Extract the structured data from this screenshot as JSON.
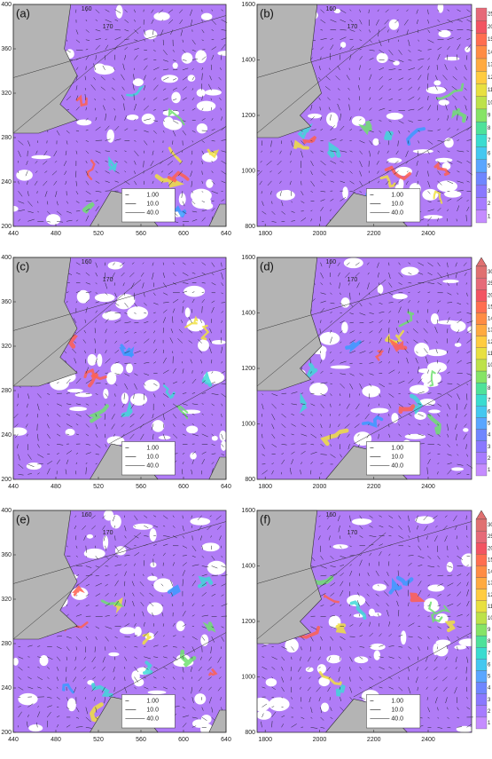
{
  "panels": [
    {
      "label": "(a)",
      "xlim": [
        440,
        640
      ],
      "xticks": [
        440,
        480,
        520,
        560,
        600,
        640
      ],
      "ylim": [
        200,
        400
      ],
      "yticks": [
        200,
        240,
        280,
        320,
        360,
        400
      ],
      "contours": [
        "160",
        "170"
      ],
      "legend": [
        "1.00",
        "10.0",
        "40.0"
      ]
    },
    {
      "label": "(b)",
      "xlim": [
        1770,
        2560
      ],
      "xticks": [
        1800,
        2000,
        2200,
        2400
      ],
      "ylim": [
        800,
        1600
      ],
      "yticks": [
        800,
        1000,
        1200,
        1400,
        1600
      ],
      "contours": [
        "160",
        "170"
      ],
      "legend": [
        "1.00",
        "10.0",
        "40.0"
      ]
    },
    {
      "label": "(c)",
      "xlim": [
        440,
        640
      ],
      "xticks": [
        440,
        480,
        520,
        560,
        600,
        640
      ],
      "ylim": [
        200,
        400
      ],
      "yticks": [
        200,
        240,
        280,
        320,
        360,
        400
      ],
      "contours": [
        "160",
        "170"
      ],
      "legend": [
        "1.00",
        "10.0",
        "40.0"
      ]
    },
    {
      "label": "(d)",
      "xlim": [
        1770,
        2560
      ],
      "xticks": [
        1800,
        2000,
        2200,
        2400
      ],
      "ylim": [
        800,
        1600
      ],
      "yticks": [
        800,
        1000,
        1200,
        1400,
        1600
      ],
      "contours": [
        "160",
        "170"
      ],
      "legend": [
        "1.00",
        "10.0",
        "40.0"
      ]
    },
    {
      "label": "(e)",
      "xlim": [
        440,
        640
      ],
      "xticks": [
        440,
        480,
        520,
        560,
        600,
        640
      ],
      "ylim": [
        200,
        400
      ],
      "yticks": [
        200,
        240,
        280,
        320,
        360,
        400
      ],
      "contours": [
        "160",
        "170"
      ],
      "legend": [
        "1.00",
        "10.0",
        "40.0"
      ]
    },
    {
      "label": "(f)",
      "xlim": [
        1770,
        2560
      ],
      "xticks": [
        1800,
        2000,
        2200,
        2400
      ],
      "ylim": [
        800,
        1600
      ],
      "yticks": [
        800,
        1000,
        1200,
        1400,
        1600
      ],
      "contours": [
        "160",
        "170"
      ],
      "legend": [
        "1.00",
        "10.0",
        "40.0"
      ]
    }
  ],
  "colorbars": [
    {
      "labels": [
        "1",
        "2",
        "3",
        "4",
        "5",
        "6",
        "7",
        "8",
        "9",
        "10",
        "11",
        "12",
        "13",
        "14",
        "15",
        "20",
        "25"
      ],
      "colors": [
        "#c58cff",
        "#a77cff",
        "#8a78ff",
        "#6f86ff",
        "#5aa6ff",
        "#44c8f0",
        "#3adcd0",
        "#4ee29a",
        "#86e466",
        "#bde24a",
        "#e8e040",
        "#ffcc40",
        "#ffaa40",
        "#ff8c44",
        "#ff6e50",
        "#f25462",
        "#e66a78"
      ],
      "arrow": false
    },
    {
      "labels": [
        "1",
        "2",
        "3",
        "4",
        "5",
        "6",
        "7",
        "8",
        "9",
        "10",
        "11",
        "12",
        "13",
        "14",
        "15",
        "20",
        "25",
        "30"
      ],
      "colors": [
        "#c58cff",
        "#a77cff",
        "#8a78ff",
        "#6f86ff",
        "#5aa6ff",
        "#44c8f0",
        "#3adcd0",
        "#4ee29a",
        "#86e466",
        "#bde24a",
        "#e8e040",
        "#ffcc40",
        "#ffaa40",
        "#ff8c44",
        "#ff6e50",
        "#f25462",
        "#e66a78",
        "#e07070"
      ],
      "arrow": true
    },
    {
      "labels": [
        "1",
        "2",
        "3",
        "4",
        "5",
        "6",
        "7",
        "8",
        "9",
        "10",
        "11",
        "12",
        "13",
        "14",
        "15",
        "20",
        "25",
        "30"
      ],
      "colors": [
        "#c58cff",
        "#a77cff",
        "#8a78ff",
        "#6f86ff",
        "#5aa6ff",
        "#44c8f0",
        "#3adcd0",
        "#4ee29a",
        "#86e466",
        "#bde24a",
        "#e8e040",
        "#ffcc40",
        "#ffaa40",
        "#ff8c44",
        "#ff6e50",
        "#f25462",
        "#e66a78",
        "#e07070"
      ],
      "arrow": true
    }
  ]
}
